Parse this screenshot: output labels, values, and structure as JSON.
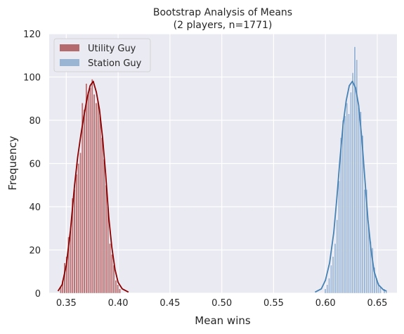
{
  "chart_data": {
    "type": "histogram",
    "title_line1": "Bootstrap Analysis of Means",
    "title_line2": "(2 players, n=1771)",
    "xlabel": "Mean wins",
    "ylabel": "Frequency",
    "xlim": [
      0.3335,
      0.669
    ],
    "ylim": [
      0,
      120
    ],
    "xticks": [
      "0.35",
      "0.40",
      "0.45",
      "0.50",
      "0.55",
      "0.60",
      "0.65"
    ],
    "yticks": [
      "0",
      "20",
      "40",
      "60",
      "80",
      "100",
      "120"
    ],
    "grid": true,
    "legend_position": "top-left",
    "series": [
      {
        "name": "Utility Guy",
        "bar_color": "#b56a6e",
        "line_color": "#8b0000",
        "bins": [
          {
            "x": 0.3438,
            "y": 3
          },
          {
            "x": 0.3457,
            "y": 6
          },
          {
            "x": 0.3476,
            "y": 14
          },
          {
            "x": 0.3495,
            "y": 17
          },
          {
            "x": 0.3514,
            "y": 26
          },
          {
            "x": 0.3533,
            "y": 30
          },
          {
            "x": 0.3552,
            "y": 44
          },
          {
            "x": 0.3571,
            "y": 48
          },
          {
            "x": 0.359,
            "y": 55
          },
          {
            "x": 0.3609,
            "y": 60
          },
          {
            "x": 0.3628,
            "y": 65
          },
          {
            "x": 0.3647,
            "y": 88
          },
          {
            "x": 0.3666,
            "y": 85
          },
          {
            "x": 0.3685,
            "y": 97
          },
          {
            "x": 0.3704,
            "y": 93
          },
          {
            "x": 0.3723,
            "y": 95
          },
          {
            "x": 0.3742,
            "y": 99
          },
          {
            "x": 0.3761,
            "y": 92
          },
          {
            "x": 0.378,
            "y": 88
          },
          {
            "x": 0.3799,
            "y": 89
          },
          {
            "x": 0.3818,
            "y": 82
          },
          {
            "x": 0.3837,
            "y": 72
          },
          {
            "x": 0.3856,
            "y": 62
          },
          {
            "x": 0.3875,
            "y": 50
          },
          {
            "x": 0.3894,
            "y": 40
          },
          {
            "x": 0.3913,
            "y": 23
          },
          {
            "x": 0.3932,
            "y": 18
          },
          {
            "x": 0.3951,
            "y": 13
          },
          {
            "x": 0.397,
            "y": 6
          },
          {
            "x": 0.3989,
            "y": 4
          },
          {
            "x": 0.4008,
            "y": 2
          }
        ],
        "kde": [
          [
            0.342,
            1
          ],
          [
            0.346,
            4
          ],
          [
            0.35,
            13
          ],
          [
            0.354,
            29
          ],
          [
            0.358,
            50
          ],
          [
            0.361,
            63
          ],
          [
            0.364,
            73
          ],
          [
            0.367,
            82
          ],
          [
            0.37,
            90
          ],
          [
            0.373,
            96
          ],
          [
            0.376,
            98
          ],
          [
            0.379,
            93
          ],
          [
            0.382,
            85
          ],
          [
            0.385,
            72
          ],
          [
            0.388,
            55
          ],
          [
            0.391,
            35
          ],
          [
            0.394,
            21
          ],
          [
            0.397,
            11
          ],
          [
            0.4,
            5
          ],
          [
            0.404,
            2
          ],
          [
            0.41,
            0.5
          ]
        ]
      },
      {
        "name": "Station Guy",
        "bar_color": "#9ab4d4",
        "line_color": "#4682b4",
        "bins": [
          {
            "x": 0.599,
            "y": 2
          },
          {
            "x": 0.6009,
            "y": 4
          },
          {
            "x": 0.6028,
            "y": 7
          },
          {
            "x": 0.6047,
            "y": 13
          },
          {
            "x": 0.6066,
            "y": 17
          },
          {
            "x": 0.6085,
            "y": 23
          },
          {
            "x": 0.6104,
            "y": 34
          },
          {
            "x": 0.6123,
            "y": 52
          },
          {
            "x": 0.6142,
            "y": 72
          },
          {
            "x": 0.6161,
            "y": 80
          },
          {
            "x": 0.618,
            "y": 82
          },
          {
            "x": 0.6199,
            "y": 88
          },
          {
            "x": 0.6218,
            "y": 83
          },
          {
            "x": 0.6237,
            "y": 93
          },
          {
            "x": 0.6256,
            "y": 102
          },
          {
            "x": 0.6275,
            "y": 114
          },
          {
            "x": 0.6294,
            "y": 108
          },
          {
            "x": 0.6313,
            "y": 86
          },
          {
            "x": 0.6332,
            "y": 84
          },
          {
            "x": 0.6351,
            "y": 73
          },
          {
            "x": 0.637,
            "y": 48
          },
          {
            "x": 0.6389,
            "y": 48
          },
          {
            "x": 0.6408,
            "y": 32
          },
          {
            "x": 0.6427,
            "y": 24
          },
          {
            "x": 0.6446,
            "y": 21
          },
          {
            "x": 0.6465,
            "y": 12
          },
          {
            "x": 0.6484,
            "y": 7
          },
          {
            "x": 0.6503,
            "y": 5
          },
          {
            "x": 0.6522,
            "y": 3
          },
          {
            "x": 0.656,
            "y": 2
          },
          {
            "x": 0.6579,
            "y": 1
          }
        ],
        "kde": [
          [
            0.59,
            0.5
          ],
          [
            0.596,
            2
          ],
          [
            0.6,
            6
          ],
          [
            0.604,
            14
          ],
          [
            0.608,
            28
          ],
          [
            0.611,
            44
          ],
          [
            0.614,
            62
          ],
          [
            0.617,
            78
          ],
          [
            0.62,
            89
          ],
          [
            0.623,
            96
          ],
          [
            0.626,
            98
          ],
          [
            0.629,
            95
          ],
          [
            0.632,
            87
          ],
          [
            0.635,
            72
          ],
          [
            0.638,
            53
          ],
          [
            0.641,
            34
          ],
          [
            0.644,
            20
          ],
          [
            0.647,
            10
          ],
          [
            0.651,
            4
          ],
          [
            0.656,
            1.5
          ],
          [
            0.659,
            1
          ]
        ]
      }
    ]
  }
}
